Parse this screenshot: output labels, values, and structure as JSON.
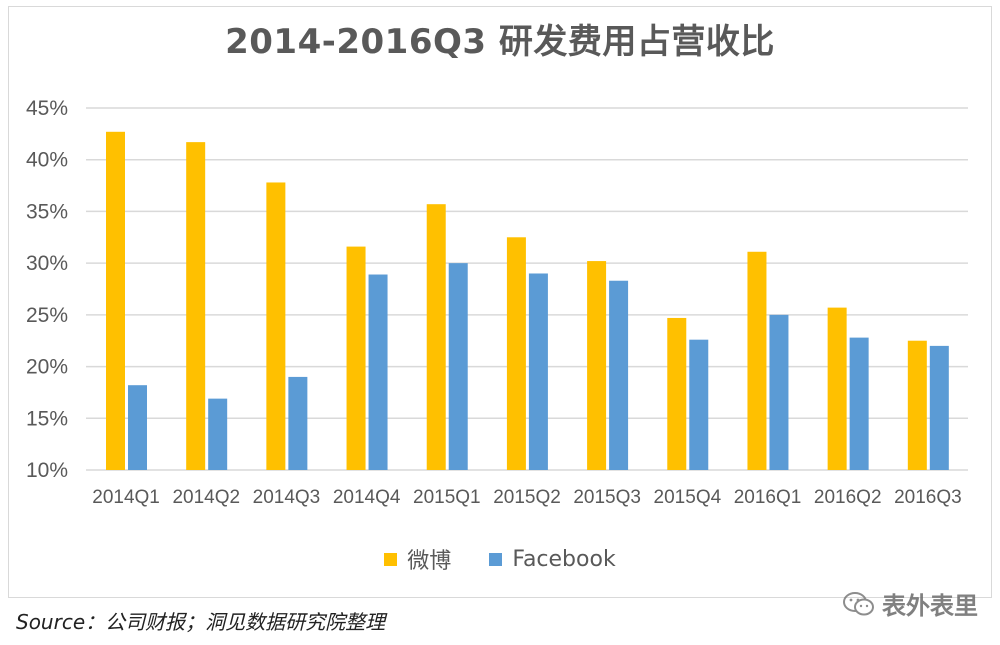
{
  "colors": {
    "weibo": "#FFC000",
    "facebook": "#5B9BD5",
    "grid": "#d9d9d9",
    "text": "#595959"
  },
  "chart_data": {
    "type": "bar",
    "title": "2014-2016Q3 研发费用占营收比",
    "categories": [
      "2014Q1",
      "2014Q2",
      "2014Q3",
      "2014Q4",
      "2015Q1",
      "2015Q2",
      "2015Q3",
      "2015Q4",
      "2016Q1",
      "2016Q2",
      "2016Q3"
    ],
    "series": [
      {
        "name": "微博",
        "color": "#FFC000",
        "values": [
          42.7,
          41.7,
          37.8,
          31.6,
          35.7,
          32.5,
          30.2,
          24.7,
          31.1,
          25.7,
          22.5
        ]
      },
      {
        "name": "Facebook",
        "color": "#5B9BD5",
        "values": [
          18.2,
          16.9,
          19.0,
          28.9,
          30.0,
          29.0,
          28.3,
          22.6,
          25.0,
          22.8,
          22.0
        ]
      }
    ],
    "ylim": [
      10,
      45
    ],
    "yticks": [
      10,
      15,
      20,
      25,
      30,
      35,
      40,
      45
    ],
    "ytick_labels": [
      "10%",
      "15%",
      "20%",
      "25%",
      "30%",
      "35%",
      "40%",
      "45%"
    ],
    "xlabel": "",
    "ylabel": "",
    "grid": true,
    "legend_position": "bottom"
  },
  "legend": [
    {
      "label": "微博",
      "color": "#FFC000"
    },
    {
      "label": "Facebook",
      "color": "#5B9BD5"
    }
  ],
  "source_text": "Source：公司财报；洞见数据研究院整理",
  "watermark_text": "表外表里"
}
